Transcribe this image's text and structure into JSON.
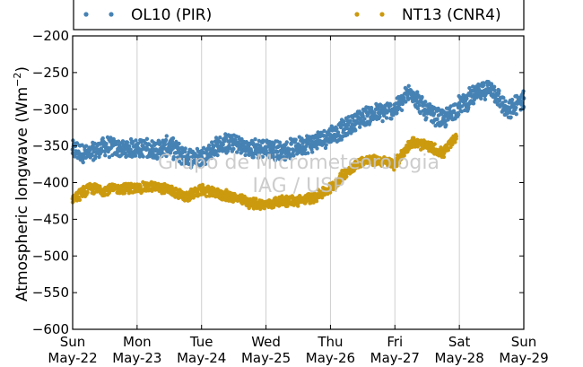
{
  "chart_data": {
    "type": "scatter",
    "ylabel": "Atmospheric longwave (Wm",
    "ylabel_exp": "−2",
    "ylabel_close": ")",
    "ylim": [
      -600,
      -200
    ],
    "yticks": [
      -600,
      -550,
      -500,
      -450,
      -400,
      -350,
      -300,
      -250,
      -200
    ],
    "ytick_labels": [
      "−600",
      "−550",
      "−500",
      "−450",
      "−400",
      "−350",
      "−300",
      "−250",
      "−200"
    ],
    "xlim": [
      0,
      7
    ],
    "xticks": [
      {
        "day": "Sun",
        "date": "May-22"
      },
      {
        "day": "Mon",
        "date": "May-23"
      },
      {
        "day": "Tue",
        "date": "May-24"
      },
      {
        "day": "Wed",
        "date": "May-25"
      },
      {
        "day": "Thu",
        "date": "May-26"
      },
      {
        "day": "Fri",
        "date": "May-27"
      },
      {
        "day": "Sat",
        "date": "May-28"
      },
      {
        "day": "Sun",
        "date": "May-29"
      }
    ],
    "grid": "vertical",
    "legend": "top",
    "series": [
      {
        "name": "OL10 (PIR)",
        "color": "#4682b4",
        "points": [
          [
            0.0,
            -355
          ],
          [
            0.25,
            -362
          ],
          [
            0.5,
            -350
          ],
          [
            0.75,
            -355
          ],
          [
            1.0,
            -352
          ],
          [
            1.25,
            -355
          ],
          [
            1.5,
            -350
          ],
          [
            1.75,
            -365
          ],
          [
            2.0,
            -365
          ],
          [
            2.25,
            -350
          ],
          [
            2.5,
            -345
          ],
          [
            2.75,
            -355
          ],
          [
            3.0,
            -352
          ],
          [
            3.25,
            -358
          ],
          [
            3.5,
            -350
          ],
          [
            3.75,
            -345
          ],
          [
            4.0,
            -335
          ],
          [
            4.25,
            -325
          ],
          [
            4.5,
            -310
          ],
          [
            4.75,
            -305
          ],
          [
            5.0,
            -300
          ],
          [
            5.25,
            -275
          ],
          [
            5.5,
            -305
          ],
          [
            5.75,
            -315
          ],
          [
            6.0,
            -295
          ],
          [
            6.25,
            -280
          ],
          [
            6.5,
            -270
          ],
          [
            6.75,
            -305
          ],
          [
            7.0,
            -285
          ]
        ]
      },
      {
        "name": "NT13 (CNR4)",
        "color": "#cc9a0e",
        "points": [
          [
            0.0,
            -422
          ],
          [
            0.25,
            -408
          ],
          [
            0.5,
            -410
          ],
          [
            0.75,
            -408
          ],
          [
            1.0,
            -408
          ],
          [
            1.25,
            -405
          ],
          [
            1.5,
            -410
          ],
          [
            1.75,
            -420
          ],
          [
            2.0,
            -410
          ],
          [
            2.25,
            -415
          ],
          [
            2.5,
            -420
          ],
          [
            2.75,
            -428
          ],
          [
            3.0,
            -430
          ],
          [
            3.25,
            -425
          ],
          [
            3.5,
            -425
          ],
          [
            3.75,
            -420
          ],
          [
            4.0,
            -408
          ],
          [
            4.25,
            -385
          ],
          [
            4.5,
            -370
          ],
          [
            4.75,
            -370
          ],
          [
            5.0,
            -375
          ],
          [
            5.25,
            -345
          ],
          [
            5.5,
            -350
          ],
          [
            5.75,
            -360
          ],
          [
            5.95,
            -337
          ]
        ]
      }
    ],
    "watermark_line1": "Grupo de Micrometeorologia",
    "watermark_line2": "IAG / USP"
  }
}
